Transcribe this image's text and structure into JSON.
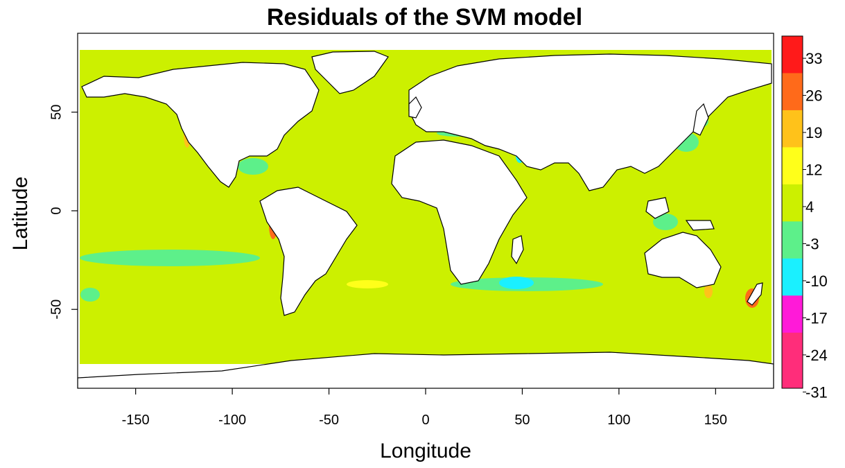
{
  "title": "Residuals of the SVM model",
  "xlabel": "Longitude",
  "ylabel": "Latitude",
  "map": {
    "xlim": [
      -180,
      180
    ],
    "ylim": [
      -90,
      90
    ],
    "x_ticks": [
      {
        "value": -150,
        "label": "-150"
      },
      {
        "value": -100,
        "label": "-100"
      },
      {
        "value": -50,
        "label": "-50"
      },
      {
        "value": 0,
        "label": "0"
      },
      {
        "value": 50,
        "label": "50"
      },
      {
        "value": 100,
        "label": "100"
      },
      {
        "value": 150,
        "label": "150"
      }
    ],
    "y_ticks": [
      {
        "value": -50,
        "label": "-50"
      },
      {
        "value": 0,
        "label": "0"
      },
      {
        "value": 50,
        "label": "50"
      }
    ],
    "ocean_color": "#ccf000",
    "land_color": "#ffffff",
    "coast_color": "#000000"
  },
  "colorbar": {
    "labels": [
      "33",
      "26",
      "19",
      "12",
      "4",
      "-3",
      "-10",
      "-17",
      "-24",
      "-31"
    ],
    "colors": [
      "#ff1a1a",
      "#ff6a1a",
      "#ffc21a",
      "#ffff1a",
      "#ccf000",
      "#5df08a",
      "#1af0ff",
      "#ff1ad8",
      "#ff2d7a"
    ]
  }
}
